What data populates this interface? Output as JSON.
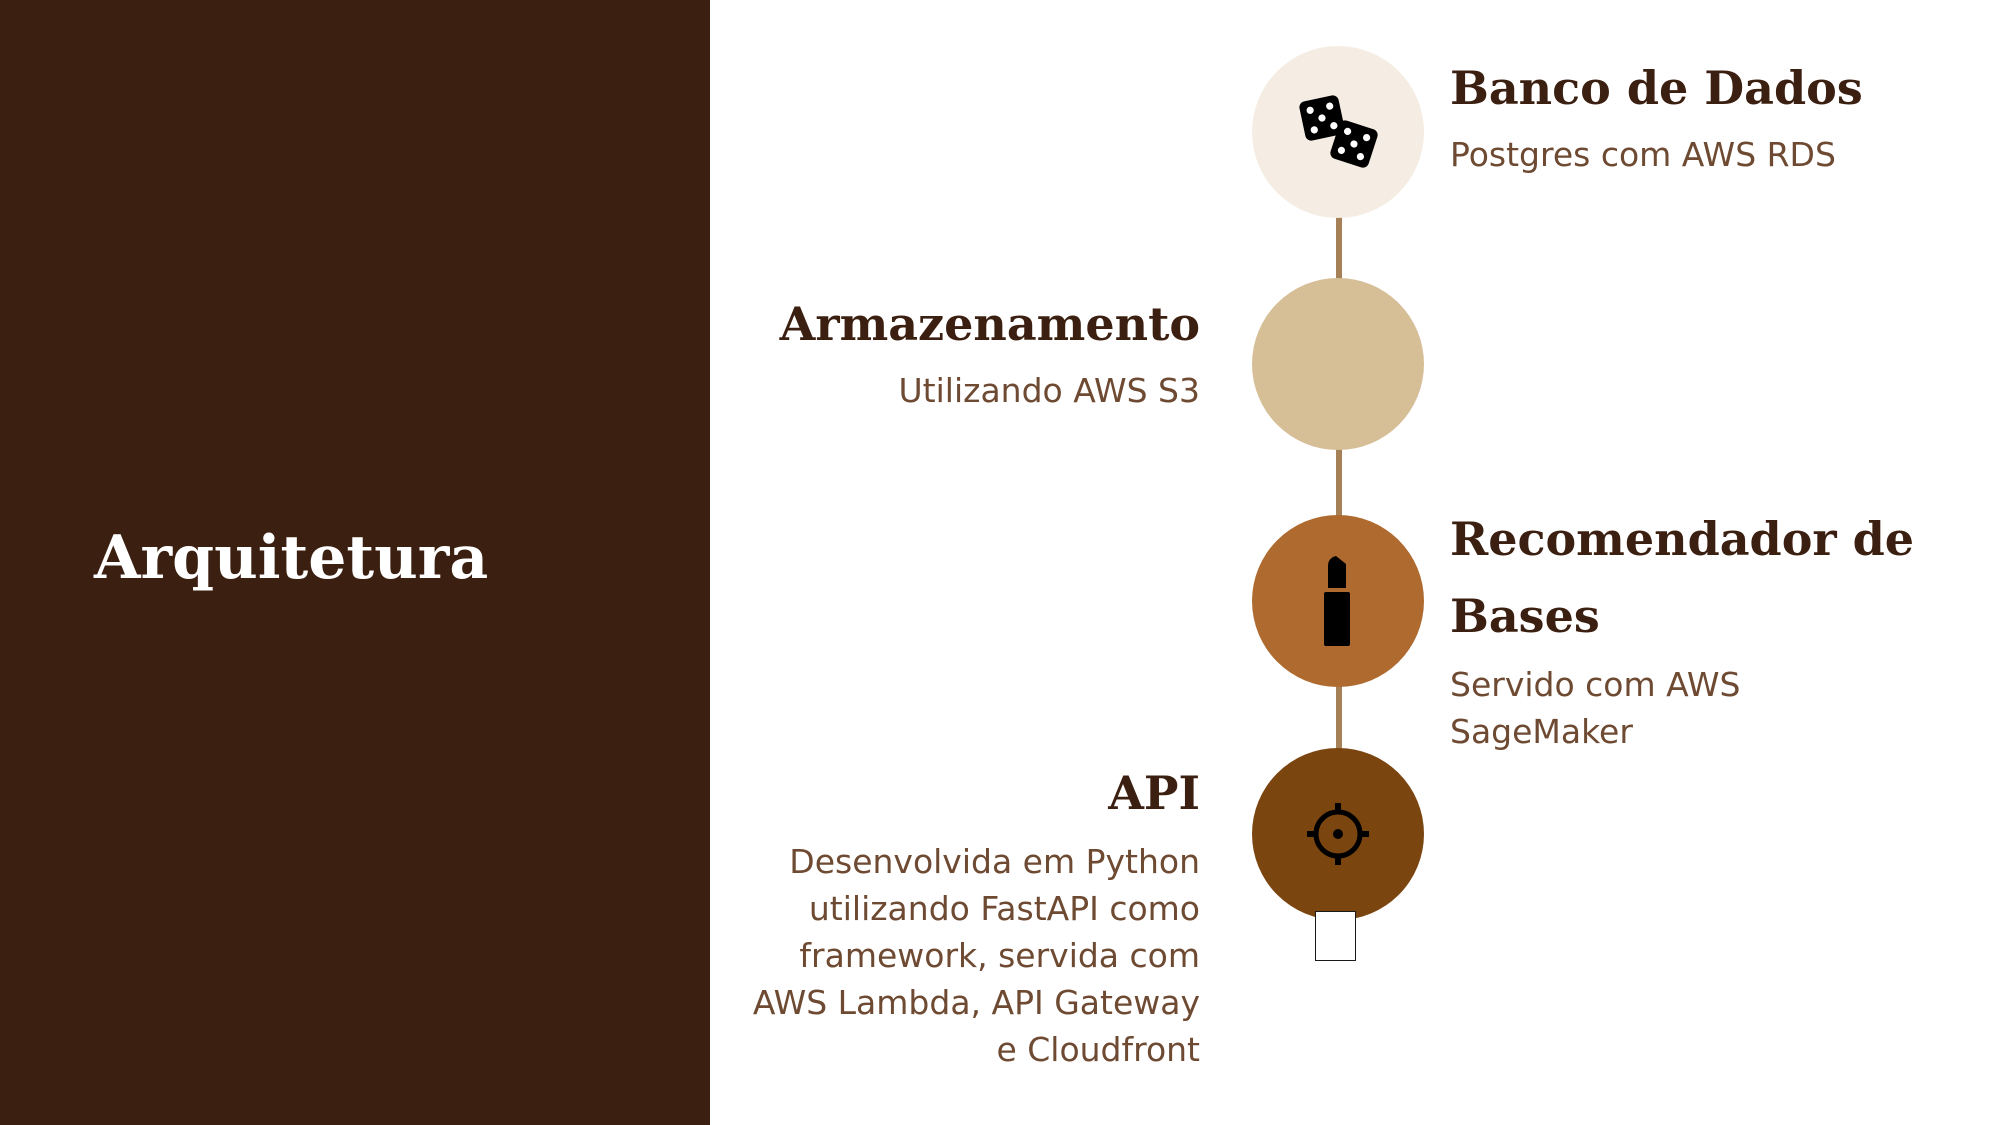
{
  "slide": {
    "title": "Arquitetura",
    "colors": {
      "panel": "#3b1f10",
      "connector": "#a68157",
      "node_1": "#f5ede3",
      "node_2": "#d6be97",
      "node_3": "#ae6a2f",
      "node_4": "#7b4510"
    }
  },
  "timeline": [
    {
      "title": "Banco de Dados",
      "description": "Postgres com AWS RDS",
      "icon": "dice-icon"
    },
    {
      "title": "Armazenamento",
      "description": "Utilizando AWS S3",
      "icon": ""
    },
    {
      "title": "Recomendador de Bases",
      "description": "Servido com AWS SageMaker",
      "icon": "lipstick-icon"
    },
    {
      "title": "API",
      "description": "Desenvolvida em Python utilizando FastAPI como framework, servida com AWS Lambda, API Gateway e Cloudfront",
      "icon": "gear-icon"
    }
  ]
}
